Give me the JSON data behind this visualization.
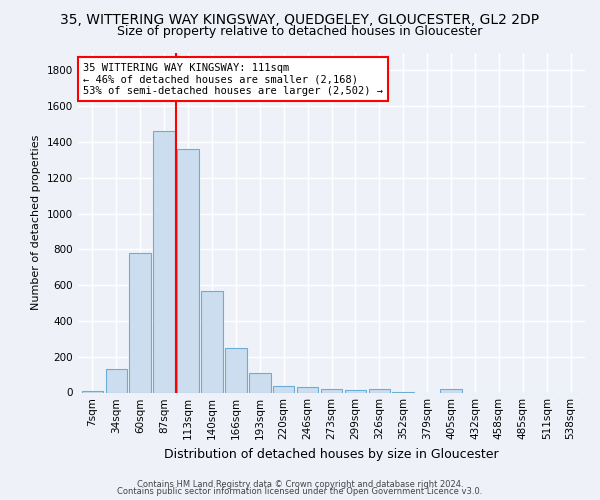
{
  "title": "35, WITTERING WAY KINGSWAY, QUEDGELEY, GLOUCESTER, GL2 2DP",
  "subtitle": "Size of property relative to detached houses in Gloucester",
  "xlabel": "Distribution of detached houses by size in Gloucester",
  "ylabel": "Number of detached properties",
  "categories": [
    "7sqm",
    "34sqm",
    "60sqm",
    "87sqm",
    "113sqm",
    "140sqm",
    "166sqm",
    "193sqm",
    "220sqm",
    "246sqm",
    "273sqm",
    "299sqm",
    "326sqm",
    "352sqm",
    "379sqm",
    "405sqm",
    "432sqm",
    "458sqm",
    "485sqm",
    "511sqm",
    "538sqm"
  ],
  "values": [
    10,
    130,
    780,
    1460,
    1360,
    570,
    248,
    108,
    38,
    28,
    20,
    15,
    20,
    5,
    0,
    18,
    0,
    0,
    0,
    0,
    0
  ],
  "bar_color": "#ccddf0",
  "bar_edge_color": "#6aaed6",
  "vline_x_index": 4,
  "vline_color": "red",
  "annotation_text": "35 WITTERING WAY KINGSWAY: 111sqm\n← 46% of detached houses are smaller (2,168)\n53% of semi-detached houses are larger (2,502) →",
  "annotation_box_color": "white",
  "annotation_box_edge_color": "red",
  "footnote1": "Contains HM Land Registry data © Crown copyright and database right 2024.",
  "footnote2": "Contains public sector information licensed under the Open Government Licence v3.0.",
  "ylim": [
    0,
    1900
  ],
  "yticks": [
    0,
    200,
    400,
    600,
    800,
    1000,
    1200,
    1400,
    1600,
    1800
  ],
  "background_color": "#eef2f8",
  "grid_color": "white",
  "title_fontsize": 10,
  "subtitle_fontsize": 9,
  "axis_label_fontsize": 8,
  "tick_fontsize": 7.5
}
